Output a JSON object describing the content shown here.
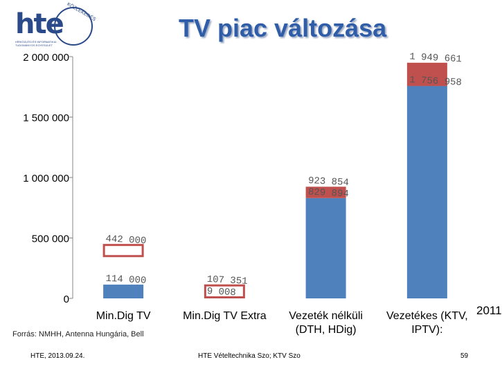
{
  "logo": {
    "name": "hte",
    "arc_text": "KÖZLEKEDÉS",
    "small_text": "HÍRKÖZLÉSI ÉS INFORMATIKAI TUDOMÁNYOS EGYESÜLET"
  },
  "title": "TV piac változása",
  "source": "Forrás: NMHH, Antenna Hungária, Bell",
  "footer": {
    "left": "HTE, 2013.09.24.",
    "center": "HTE Vételtechnika Szo; KTV Szo",
    "page": "59"
  },
  "overflow_label": "2011",
  "colors": {
    "base": "#4f81bd",
    "top": "#c0504d",
    "title": "#2f5da8"
  },
  "chart_data": {
    "type": "bar",
    "stacked": true,
    "categories": [
      "Min.Dig TV",
      "Min.Dig TV Extra",
      "Vezeték nélküli (DTH, HDig)",
      "Vezetékes (KTV, IPTV):"
    ],
    "category_lines": [
      [
        "Min.Dig TV"
      ],
      [
        "Min.Dig TV Extra"
      ],
      [
        "Vezeték nélküli",
        "(DTH, HDig)"
      ],
      [
        "Vezetékes (KTV,",
        "IPTV):"
      ]
    ],
    "series": [
      {
        "values": [
          114000,
          9008,
          829894,
          1756958
        ],
        "color": "#4f81bd"
      },
      {
        "values": [
          0,
          0,
          93960,
          192703
        ],
        "color": "#c0504d"
      }
    ],
    "data_labels": [
      {
        "category": 0,
        "value": 442000,
        "text": "442 000"
      },
      {
        "category": 0,
        "value": 114000,
        "text": "114 000"
      },
      {
        "category": 1,
        "value": 107351,
        "text": "107 351"
      },
      {
        "category": 1,
        "value": 9008,
        "text": "9 008"
      },
      {
        "category": 2,
        "value": 923854,
        "text": "923 854"
      },
      {
        "category": 2,
        "value": 829894,
        "text": "829 894"
      },
      {
        "category": 3,
        "value": 1949661,
        "text": "1 949 661"
      },
      {
        "category": 3,
        "value": 1756958,
        "text": "1 756 958"
      }
    ],
    "hollow_boxes": [
      {
        "category": 0,
        "from": 350000,
        "to": 442000
      },
      {
        "category": 1,
        "from": 9008,
        "to": 107351
      }
    ],
    "yticks": [
      0,
      500000,
      1000000,
      1500000,
      2000000
    ],
    "ytick_labels": [
      "0",
      "500 000",
      "1 000 000",
      "1 500 000",
      "2 000 000"
    ],
    "ylim": [
      0,
      2000000
    ],
    "grid": false
  }
}
